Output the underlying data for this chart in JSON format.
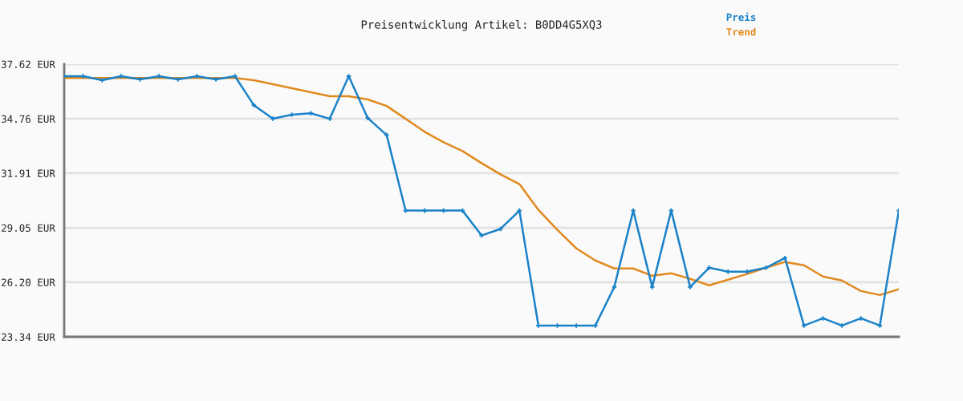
{
  "chart_data": {
    "type": "line",
    "title": "Preisentwicklung Artikel: B0DD4G5XQ3",
    "categories": [
      null,
      null,
      null,
      null,
      null,
      null,
      null,
      null,
      null,
      null,
      null,
      null,
      null,
      null,
      null,
      null,
      null,
      null,
      null,
      null,
      null,
      null,
      null,
      null,
      null,
      null,
      null,
      null,
      null,
      null,
      null,
      null,
      null,
      null,
      null,
      null,
      null,
      null,
      null,
      null,
      null,
      null,
      null,
      null,
      null
    ],
    "series": [
      {
        "name": "Preis",
        "color": "#1a82c8",
        "marker": "cross",
        "values": [
          36.99,
          36.99,
          36.78,
          36.99,
          36.82,
          36.99,
          36.82,
          36.99,
          36.82,
          36.99,
          35.47,
          34.76,
          34.97,
          35.05,
          34.76,
          36.99,
          34.8,
          33.91,
          29.95,
          29.95,
          29.95,
          29.95,
          28.65,
          28.99,
          29.95,
          23.93,
          23.93,
          23.93,
          23.93,
          25.95,
          29.95,
          25.95,
          29.95,
          25.95,
          26.96,
          26.75,
          26.75,
          26.96,
          27.47,
          23.93,
          24.31,
          23.93,
          24.31,
          23.93,
          29.95
        ]
      },
      {
        "name": "Trend",
        "color": "#e08a1e",
        "marker": "none",
        "values": [
          36.9,
          36.9,
          36.9,
          36.9,
          36.9,
          36.9,
          36.9,
          36.9,
          36.9,
          36.9,
          36.78,
          36.57,
          36.36,
          36.15,
          35.94,
          35.94,
          35.77,
          35.43,
          34.76,
          34.08,
          33.53,
          33.07,
          32.44,
          31.85,
          31.34,
          29.99,
          28.94,
          27.97,
          27.34,
          26.92,
          26.92,
          26.54,
          26.67,
          26.38,
          26.04,
          26.33,
          26.63,
          26.96,
          27.26,
          27.09,
          26.5,
          26.29,
          25.74,
          25.53,
          25.83
        ]
      }
    ],
    "ylim": [
      23.34,
      37.62
    ],
    "yticks": [
      {
        "value": 23.34,
        "label": "23.34 EUR"
      },
      {
        "value": 26.2,
        "label": "26.20 EUR"
      },
      {
        "value": 29.05,
        "label": "29.05 EUR"
      },
      {
        "value": 31.91,
        "label": "31.91 EUR"
      },
      {
        "value": 34.76,
        "label": "34.76 EUR"
      },
      {
        "value": 37.62,
        "label": "37.62 EUR"
      }
    ],
    "grid": "y",
    "legend": "top right",
    "line_style": "solid"
  }
}
